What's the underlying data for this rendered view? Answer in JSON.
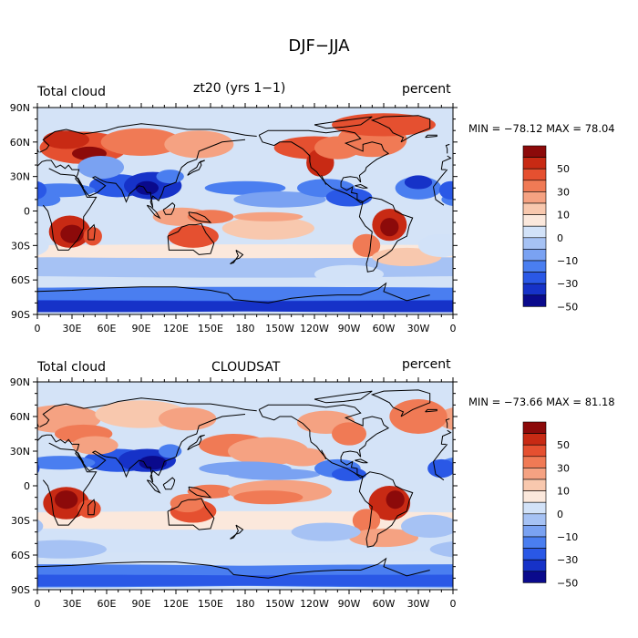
{
  "title": "DJF−JJA",
  "panels": [
    {
      "left_label": "Total cloud",
      "center_label": "zt20 (yrs 1−1)",
      "right_label": "percent",
      "stats": "MIN = −78.12 MAX =  78.04"
    },
    {
      "left_label": "Total cloud",
      "center_label": "CLOUDSAT",
      "right_label": "percent",
      "stats": "MIN = −73.66 MAX =  81.18"
    }
  ],
  "axes": {
    "lon_ticks": [
      "0",
      "30E",
      "60E",
      "90E",
      "120E",
      "150E",
      "180",
      "150W",
      "120W",
      "90W",
      "60W",
      "30W",
      "0"
    ],
    "lat_ticks": [
      "90N",
      "60N",
      "30N",
      "0",
      "30S",
      "60S",
      "90S"
    ]
  },
  "colorbar": {
    "labels": [
      "50",
      "30",
      "10",
      "0",
      "−10",
      "−30",
      "−50"
    ],
    "colors": [
      "#0a0a8c",
      "#1632c8",
      "#2a58e6",
      "#4a7ef0",
      "#7aa2f2",
      "#a6c2f4",
      "#d2e2f8",
      "#fbe8dc",
      "#f8c8ae",
      "#f5a282",
      "#f07a55",
      "#e55030",
      "#c82a14",
      "#8c0a0a"
    ]
  }
}
